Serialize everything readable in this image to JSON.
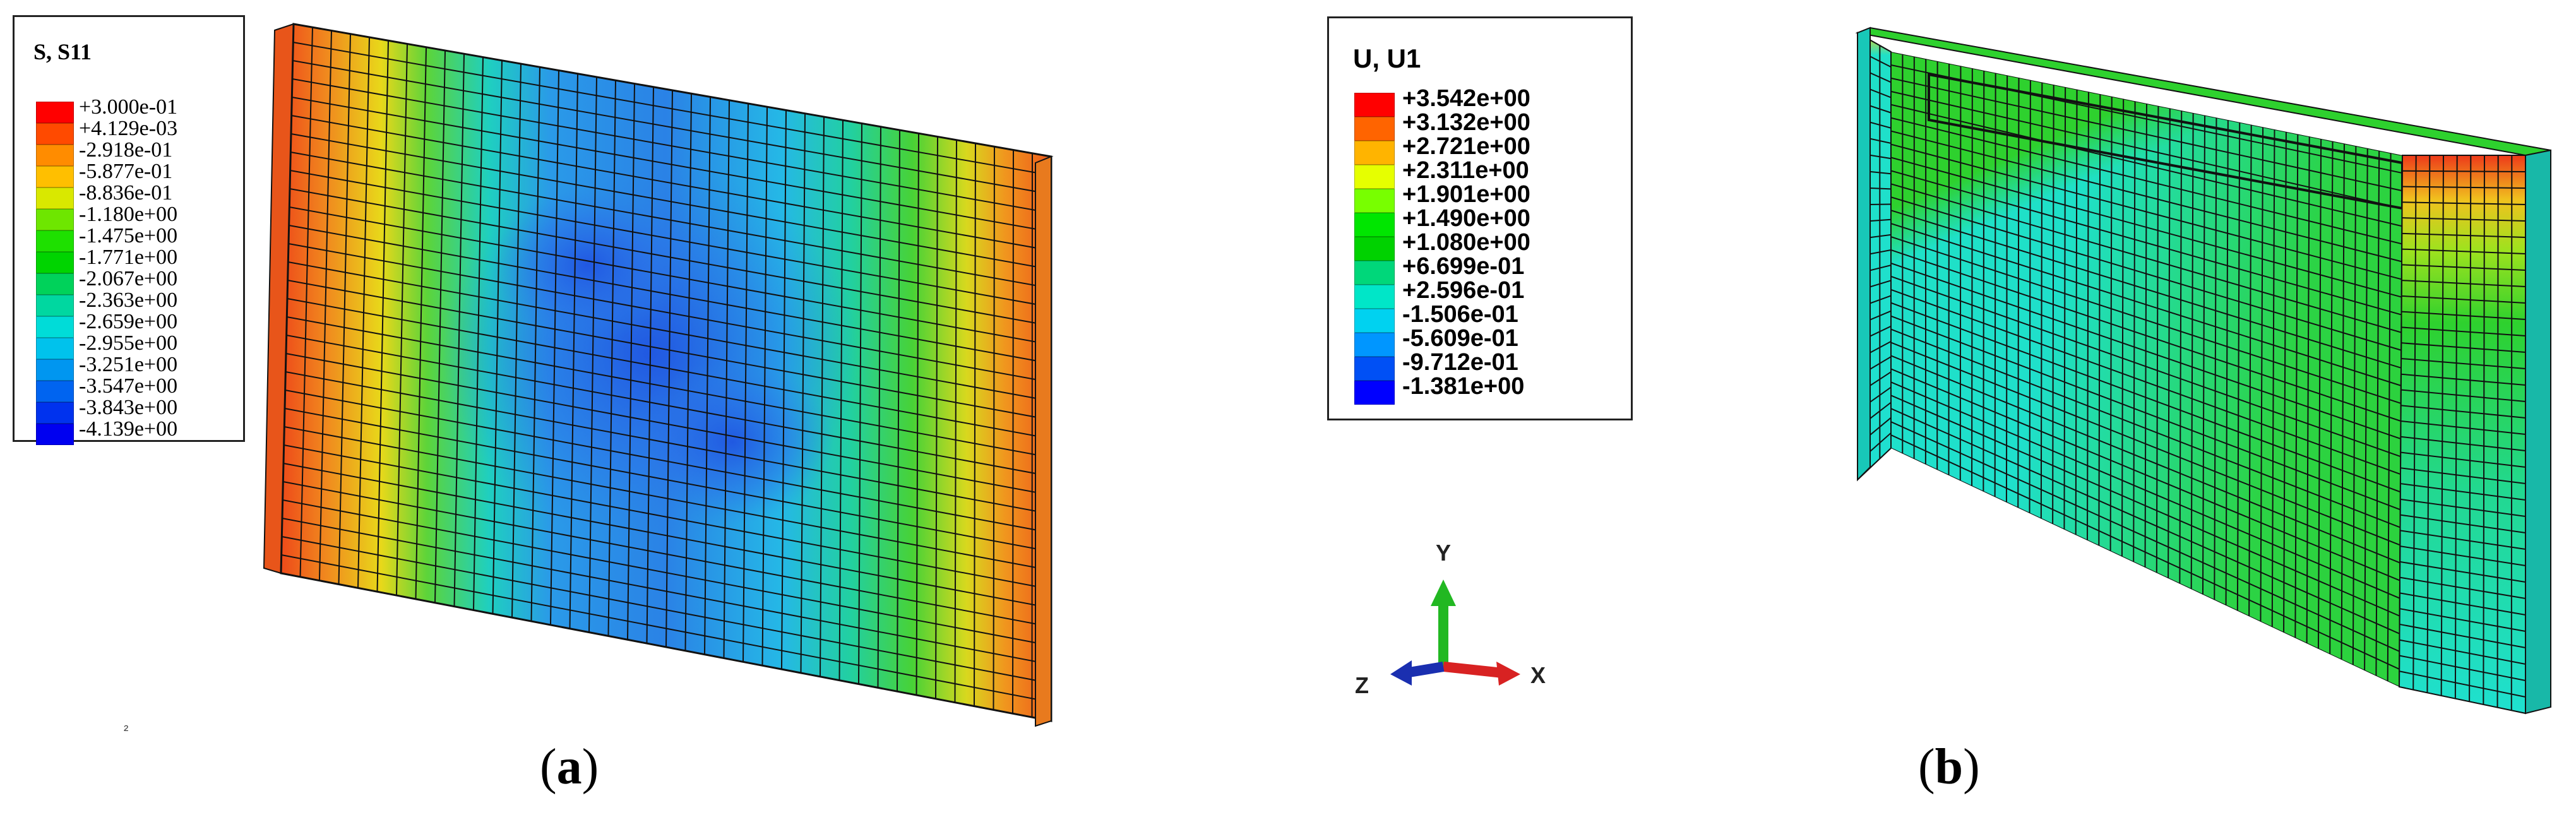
{
  "panel_a": {
    "caption_letter": "a",
    "legend_title": "S, S11",
    "legend_values": [
      "+3.000e-01",
      "+4.129e-03",
      "-2.918e-01",
      "-5.877e-01",
      "-8.836e-01",
      "-1.180e+00",
      "-1.475e+00",
      "-1.771e+00",
      "-2.067e+00",
      "-2.363e+00",
      "-2.659e+00",
      "-2.955e+00",
      "-3.251e+00",
      "-3.547e+00",
      "-3.843e+00",
      "-4.139e+00"
    ],
    "legend_colors": [
      "#ff0000",
      "#ff4a00",
      "#ff8c00",
      "#ffbf00",
      "#d9e800",
      "#6ee600",
      "#1ee000",
      "#00d400",
      "#00d25a",
      "#00d7a0",
      "#00dcd8",
      "#00c2ec",
      "#0096f0",
      "#0064f0",
      "#0032ee",
      "#0000f0"
    ]
  },
  "panel_b": {
    "caption_letter": "b",
    "legend_title": "U, U1",
    "legend_values": [
      "+3.542e+00",
      "+3.132e+00",
      "+2.721e+00",
      "+2.311e+00",
      "+1.901e+00",
      "+1.490e+00",
      "+1.080e+00",
      "+6.699e-01",
      "+2.596e-01",
      "-1.506e-01",
      "-5.609e-01",
      "-9.712e-01",
      "-1.381e+00"
    ],
    "legend_colors": [
      "#ff0000",
      "#ff6400",
      "#ffb400",
      "#e6ff00",
      "#78ff00",
      "#00e600",
      "#00d200",
      "#00d77a",
      "#00e6c8",
      "#00d2f0",
      "#0096ff",
      "#0050f5",
      "#0000ff"
    ],
    "axes": {
      "y": "Y",
      "x": "X",
      "z": "Z"
    }
  },
  "colors": {
    "mesh_line": "#111111",
    "orange_edge": "#f08a1e",
    "red_edge": "#ee3a1a",
    "green_band": "#2ed12e",
    "cyan_body": "#1fe0d0",
    "blue_core": "#1f7ee8",
    "deep_blue": "#1446d6",
    "axis_y": "#22b822",
    "axis_x": "#d82222",
    "axis_z": "#1a2fb0"
  }
}
